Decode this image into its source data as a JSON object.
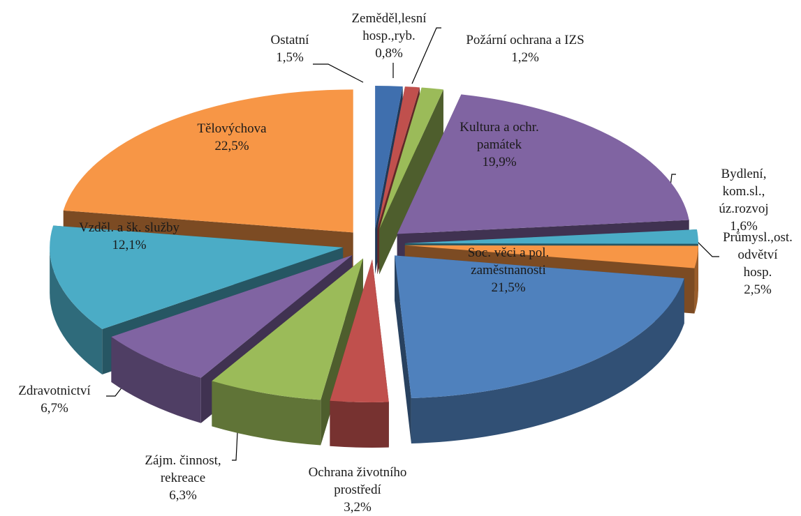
{
  "chart_data": {
    "type": "pie3d",
    "categories": [
      "Ostatní",
      "Zeměděl,lesní\nhosp.,ryb.",
      "Požární ochrana a IZS",
      "Kultura a ochr.\npamátek",
      "Bydlení, kom.sl.,\núz.rozvoj",
      "Průmysl.,ost.\nodvětví hosp.",
      "Soc. věci a pol.\nzaměstnanosti",
      "Ochrana životního\nprostředí",
      "Zájm. činnost,\nrekreace",
      "Zdravotnictví",
      "Vzděl. a šk. služby",
      "Tělovýchova"
    ],
    "values": [
      1.5,
      0.8,
      1.2,
      19.9,
      1.6,
      2.5,
      21.5,
      3.2,
      6.3,
      6.7,
      12.1,
      22.5
    ],
    "value_labels": [
      "1,5%",
      "0,8%",
      "1,2%",
      "19,9%",
      "1,6%",
      "2,5%",
      "21,5%",
      "3,2%",
      "6,3%",
      "6,7%",
      "12,1%",
      "22,5%"
    ],
    "colors": [
      "#3f6fae",
      "#c0504d",
      "#9bbb59",
      "#8064a2",
      "#4bacc6",
      "#f79646",
      "#4f81bd",
      "#c0504d",
      "#9bbb59",
      "#8064a2",
      "#4bacc6",
      "#f79646"
    ]
  }
}
